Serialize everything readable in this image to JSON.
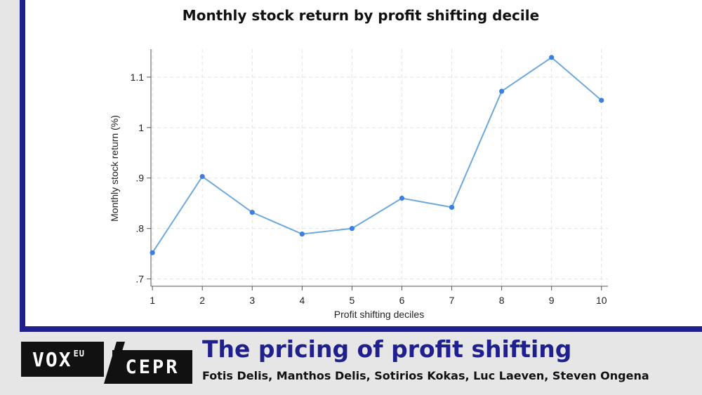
{
  "chart_data": {
    "type": "line",
    "title": "Monthly stock return by profit shifting decile",
    "xlabel": "Profit shifting deciles",
    "ylabel": "Monthly stock return (%)",
    "x": [
      1,
      2,
      3,
      4,
      5,
      6,
      7,
      8,
      9,
      10
    ],
    "values": [
      0.752,
      0.903,
      0.832,
      0.789,
      0.8,
      0.86,
      0.842,
      1.072,
      1.139,
      1.054
    ],
    "xlim": [
      0.97,
      10.13
    ],
    "ylim": [
      0.6855,
      1.1555
    ],
    "yticks": [
      0.7,
      0.8,
      0.9,
      1.0,
      1.1
    ],
    "ytick_labels": [
      ".7",
      ".8",
      ".9",
      "1",
      "1.1"
    ],
    "xticks": [
      1,
      2,
      3,
      4,
      5,
      6,
      7,
      8,
      9,
      10
    ],
    "xtick_labels": [
      "1",
      "2",
      "3",
      "4",
      "5",
      "6",
      "7",
      "8",
      "9",
      "10"
    ],
    "grid": true,
    "line_color": "#6fa8dc",
    "marker_color": "#3b7fe0"
  },
  "footer": {
    "logo_vox": "VOX",
    "logo_eu": "EU",
    "logo_cepr": "CEPR",
    "headline": "The pricing of profit shifting",
    "authors": "Fotis Delis, Manthos Delis, Sotirios Kokas, Luc Laeven, Steven Ongena"
  },
  "colors": {
    "brand_blue": "#1f1f8e",
    "footer_bg": "#e6e6e6"
  }
}
